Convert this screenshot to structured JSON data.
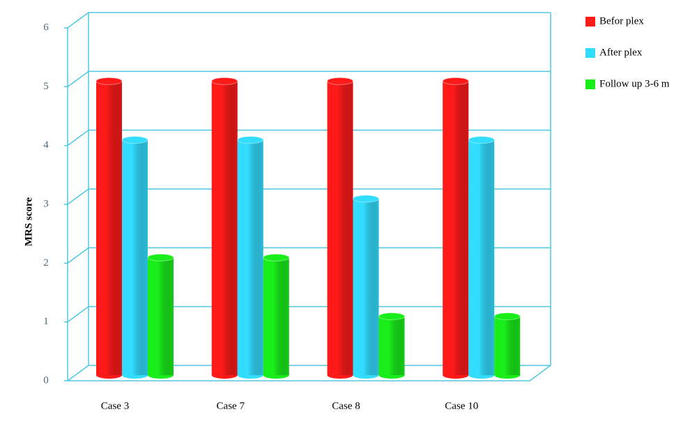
{
  "chart_data": {
    "type": "bar3d",
    "y_label": "MRS score",
    "categories": [
      "Case 3",
      "Case 7",
      "Case 8",
      "Case 10"
    ],
    "series": [
      {
        "name": "Befor plex",
        "color": "#ff1a1a",
        "values": [
          5,
          5,
          5,
          5
        ]
      },
      {
        "name": "After plex",
        "color": "#33ddff",
        "values": [
          4,
          4,
          3,
          4
        ]
      },
      {
        "name": "Follow up 3-6 m",
        "color": "#1aee1a",
        "values": [
          2,
          2,
          1,
          1
        ]
      }
    ],
    "ylim": [
      0,
      6
    ],
    "yticks": [
      0,
      1,
      2,
      3,
      4,
      5,
      6
    ],
    "grid": true
  }
}
